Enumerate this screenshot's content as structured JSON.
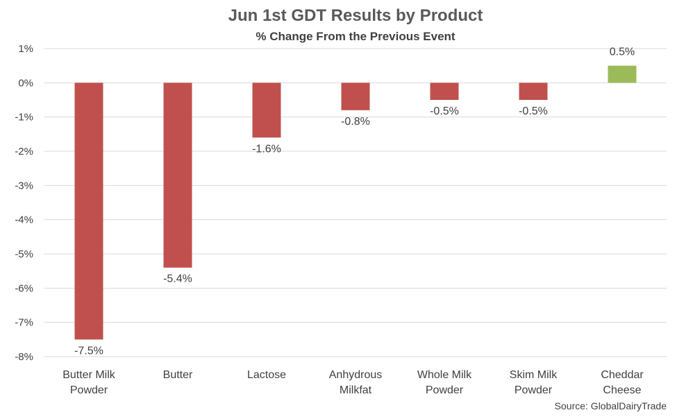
{
  "chart_data": {
    "type": "bar",
    "title": "Jun 1st GDT Results by Product",
    "subtitle": "% Change From the Previous Event",
    "source": "Source: GlobalDairyTrade",
    "categories": [
      [
        "Butter Milk",
        "Powder"
      ],
      [
        "Butter"
      ],
      [
        "Lactose"
      ],
      [
        "Anhydrous",
        "Milkfat"
      ],
      [
        "Whole Milk",
        "Powder"
      ],
      [
        "Skim Milk",
        "Powder"
      ],
      [
        "Cheddar",
        "Cheese"
      ]
    ],
    "values": [
      -7.5,
      -5.4,
      -1.6,
      -0.8,
      -0.5,
      -0.5,
      0.5
    ],
    "data_labels": [
      "-7.5%",
      "-5.4%",
      "-1.6%",
      "-0.8%",
      "-0.5%",
      "-0.5%",
      "0.5%"
    ],
    "ylim": [
      -8,
      1
    ],
    "yticks": [
      1,
      0,
      -1,
      -2,
      -3,
      -4,
      -5,
      -6,
      -7,
      -8
    ],
    "ytick_labels": [
      "1%",
      "0%",
      "-1%",
      "-2%",
      "-3%",
      "-4%",
      "-5%",
      "-6%",
      "-7%",
      "-8%"
    ],
    "grid": true,
    "colors": {
      "negative": "#c0504d",
      "positive": "#9bbb59",
      "grid": "#d9d9d9"
    }
  }
}
